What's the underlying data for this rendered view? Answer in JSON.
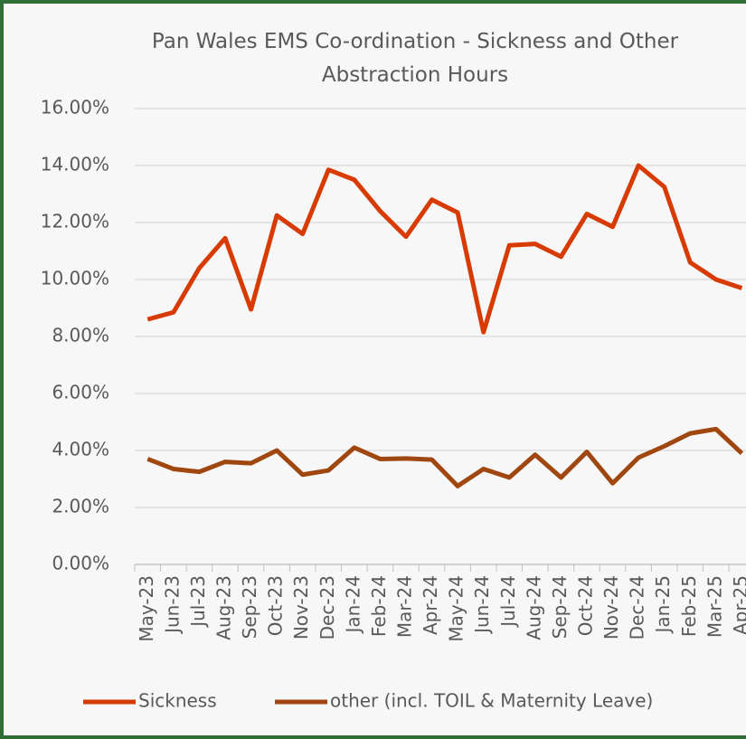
{
  "chart_data": {
    "type": "line",
    "title": "Pan Wales EMS Co-ordination - Sickness and Other Abstraction Hours",
    "categories": [
      "May-23",
      "Jun-23",
      "Jul-23",
      "Aug-23",
      "Sep-23",
      "Oct-23",
      "Nov-23",
      "Dec-23",
      "Jan-24",
      "Feb-24",
      "Mar-24",
      "Apr-24",
      "May-24",
      "Jun-24",
      "Jul-24",
      "Aug-24",
      "Sep-24",
      "Oct-24",
      "Nov-24",
      "Dec-24",
      "Jan-25",
      "Feb-25",
      "Mar-25",
      "Apr-25"
    ],
    "series": [
      {
        "name": "Sickness",
        "color": "#d83b01",
        "values": [
          8.6,
          8.85,
          10.4,
          11.45,
          8.95,
          12.25,
          11.6,
          13.85,
          13.5,
          12.4,
          11.5,
          12.8,
          12.35,
          8.15,
          11.2,
          11.25,
          10.8,
          12.3,
          11.85,
          14.0,
          13.25,
          10.6,
          10.0,
          9.7
        ]
      },
      {
        "name": "other (incl. TOIL & Maternity Leave)",
        "color": "#a0460f",
        "values": [
          3.7,
          3.35,
          3.25,
          3.6,
          3.55,
          4.0,
          3.15,
          3.3,
          4.1,
          3.7,
          3.72,
          3.68,
          2.75,
          3.35,
          3.05,
          3.85,
          3.05,
          3.95,
          2.85,
          3.75,
          4.15,
          4.6,
          4.75,
          3.9
        ]
      }
    ],
    "ylim": [
      0,
      16
    ],
    "yticks": [
      {
        "value": 0,
        "label": "0.00%"
      },
      {
        "value": 2,
        "label": "2.00%"
      },
      {
        "value": 4,
        "label": "4.00%"
      },
      {
        "value": 6,
        "label": "6.00%"
      },
      {
        "value": 8,
        "label": "8.00%"
      },
      {
        "value": 10,
        "label": "10.00%"
      },
      {
        "value": 12,
        "label": "12.00%"
      },
      {
        "value": 14,
        "label": "14.00%"
      },
      {
        "value": 16,
        "label": "16.00%"
      }
    ],
    "grid": true,
    "legend": "bottom"
  }
}
